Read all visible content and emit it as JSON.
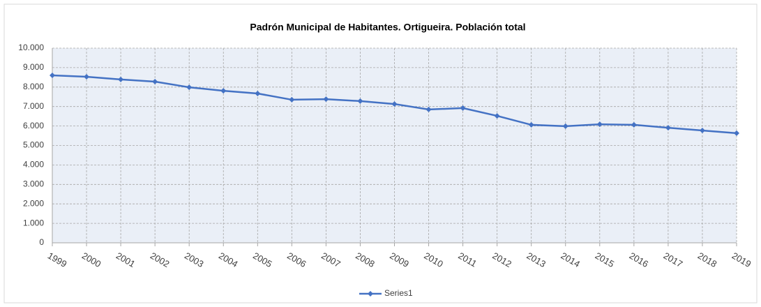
{
  "chart_data": {
    "type": "line",
    "title": "Padrón Municipal de Habitantes. Ortigueira. Población total",
    "categories": [
      "1999",
      "2000",
      "2001",
      "2002",
      "2003",
      "2004",
      "2005",
      "2006",
      "2007",
      "2008",
      "2009",
      "2010",
      "2011",
      "2012",
      "2013",
      "2014",
      "2015",
      "2016",
      "2017",
      "2018",
      "2019"
    ],
    "series": [
      {
        "name": "Series1",
        "color": "#4472c4",
        "values": [
          8600,
          8530,
          8390,
          8280,
          7990,
          7810,
          7670,
          7350,
          7380,
          7280,
          7130,
          6850,
          6920,
          6520,
          6060,
          5990,
          6090,
          6060,
          5910,
          5770,
          5630
        ]
      }
    ],
    "ylim": [
      0,
      10000
    ],
    "yticks": [
      0,
      {
        "value": 1000,
        "label": "1.000"
      },
      {
        "value": 2000,
        "label": "2.000"
      },
      {
        "value": 3000,
        "label": "3.000"
      },
      {
        "value": 4000,
        "label": "4.000"
      },
      {
        "value": 5000,
        "label": "5.000"
      },
      {
        "value": 6000,
        "label": "6.000"
      },
      {
        "value": 7000,
        "label": "7.000"
      },
      {
        "value": 8000,
        "label": "8.000"
      },
      {
        "value": 9000,
        "label": "9.000"
      },
      {
        "value": 10000,
        "label": "10.000"
      }
    ],
    "grid": true,
    "legend": "bottom"
  }
}
